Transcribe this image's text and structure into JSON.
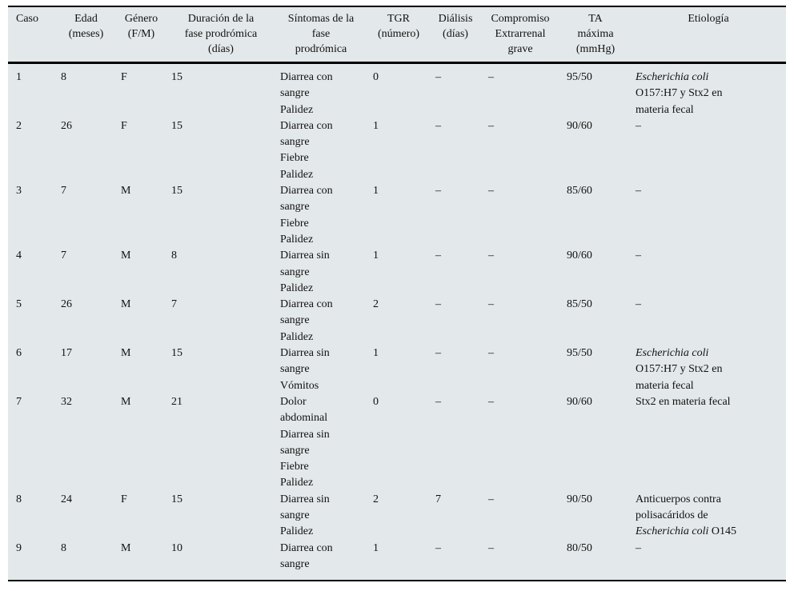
{
  "table": {
    "columns": [
      {
        "id": "caso",
        "header_lines": [
          "Caso"
        ]
      },
      {
        "id": "edad",
        "header_lines": [
          "Edad",
          "(meses)"
        ]
      },
      {
        "id": "genero",
        "header_lines": [
          "Género",
          "(F/M)"
        ]
      },
      {
        "id": "duracion",
        "header_lines": [
          "Duración de la",
          "fase prodrómica",
          "(días)"
        ]
      },
      {
        "id": "sintomas",
        "header_lines": [
          "Síntomas de la",
          "fase",
          "prodrómica"
        ]
      },
      {
        "id": "tgr",
        "header_lines": [
          "TGR",
          "(número)"
        ]
      },
      {
        "id": "dialisis",
        "header_lines": [
          "Diálisis",
          "(días)"
        ]
      },
      {
        "id": "compromiso",
        "header_lines": [
          "Compromiso",
          "Extrarrenal",
          "grave"
        ]
      },
      {
        "id": "ta",
        "header_lines": [
          "TA",
          "máxima",
          "(mmHg)"
        ]
      },
      {
        "id": "etiologia",
        "header_lines": [
          "Etiología"
        ]
      }
    ],
    "rows": [
      {
        "caso": "1",
        "edad": "8",
        "genero": "F",
        "duracion": "15",
        "sintomas": [
          "Diarrea con sangre",
          "Palidez"
        ],
        "tgr": "0",
        "dialisis": "–",
        "compromiso": "–",
        "ta": "95/50",
        "etiologia": [
          {
            "t": "Escherichia coli",
            "i": true
          },
          {
            "t": " O157:H7 y Stx2 en materia fecal",
            "i": false
          }
        ]
      },
      {
        "caso": "2",
        "edad": "26",
        "genero": "F",
        "duracion": "15",
        "sintomas": [
          "Diarrea con sangre",
          "Fiebre",
          "Palidez"
        ],
        "tgr": "1",
        "dialisis": "–",
        "compromiso": "–",
        "ta": "90/60",
        "etiologia": [
          {
            "t": "–",
            "i": false
          }
        ]
      },
      {
        "caso": "3",
        "edad": "7",
        "genero": "M",
        "duracion": "15",
        "sintomas": [
          "Diarrea con sangre",
          "Fiebre",
          "Palidez"
        ],
        "tgr": "1",
        "dialisis": "–",
        "compromiso": "–",
        "ta": "85/60",
        "etiologia": [
          {
            "t": "–",
            "i": false
          }
        ]
      },
      {
        "caso": "4",
        "edad": "7",
        "genero": "M",
        "duracion": "8",
        "sintomas": [
          "Diarrea sin sangre",
          "Palidez"
        ],
        "tgr": "1",
        "dialisis": "–",
        "compromiso": "–",
        "ta": "90/60",
        "etiologia": [
          {
            "t": "–",
            "i": false
          }
        ]
      },
      {
        "caso": "5",
        "edad": "26",
        "genero": "M",
        "duracion": "7",
        "sintomas": [
          "Diarrea con sangre",
          "Palidez"
        ],
        "tgr": "2",
        "dialisis": "–",
        "compromiso": "–",
        "ta": "85/50",
        "etiologia": [
          {
            "t": "–",
            "i": false
          }
        ]
      },
      {
        "caso": "6",
        "edad": "17",
        "genero": "M",
        "duracion": "15",
        "sintomas": [
          "Diarrea sin sangre",
          "Vómitos"
        ],
        "tgr": "1",
        "dialisis": "–",
        "compromiso": "–",
        "ta": "95/50",
        "etiologia": [
          {
            "t": "Escherichia coli",
            "i": true
          },
          {
            "t": " O157:H7 y Stx2 en materia fecal",
            "i": false
          }
        ]
      },
      {
        "caso": "7",
        "edad": "32",
        "genero": "M",
        "duracion": "21",
        "sintomas": [
          "Dolor abdominal",
          "Diarrea sin sangre",
          "Fiebre",
          "Palidez"
        ],
        "tgr": "0",
        "dialisis": "–",
        "compromiso": "–",
        "ta": "90/60",
        "etiologia": [
          {
            "t": "Stx2 en materia fecal",
            "i": false
          }
        ]
      },
      {
        "caso": "8",
        "edad": "24",
        "genero": "F",
        "duracion": "15",
        "sintomas": [
          "Diarrea sin sangre",
          "Palidez"
        ],
        "tgr": "2",
        "dialisis": "7",
        "compromiso": "–",
        "ta": "90/50",
        "etiologia": [
          {
            "t": "Anticuerpos contra polisacáridos de ",
            "i": false
          },
          {
            "t": "Escherichia coli",
            "i": true
          },
          {
            "t": " O145",
            "i": false
          }
        ]
      },
      {
        "caso": "9",
        "edad": "8",
        "genero": "M",
        "duracion": "10",
        "sintomas": [
          "Diarrea con sangre"
        ],
        "tgr": "1",
        "dialisis": "–",
        "compromiso": "–",
        "ta": "80/50",
        "etiologia": [
          {
            "t": "–",
            "i": false
          }
        ]
      }
    ]
  }
}
